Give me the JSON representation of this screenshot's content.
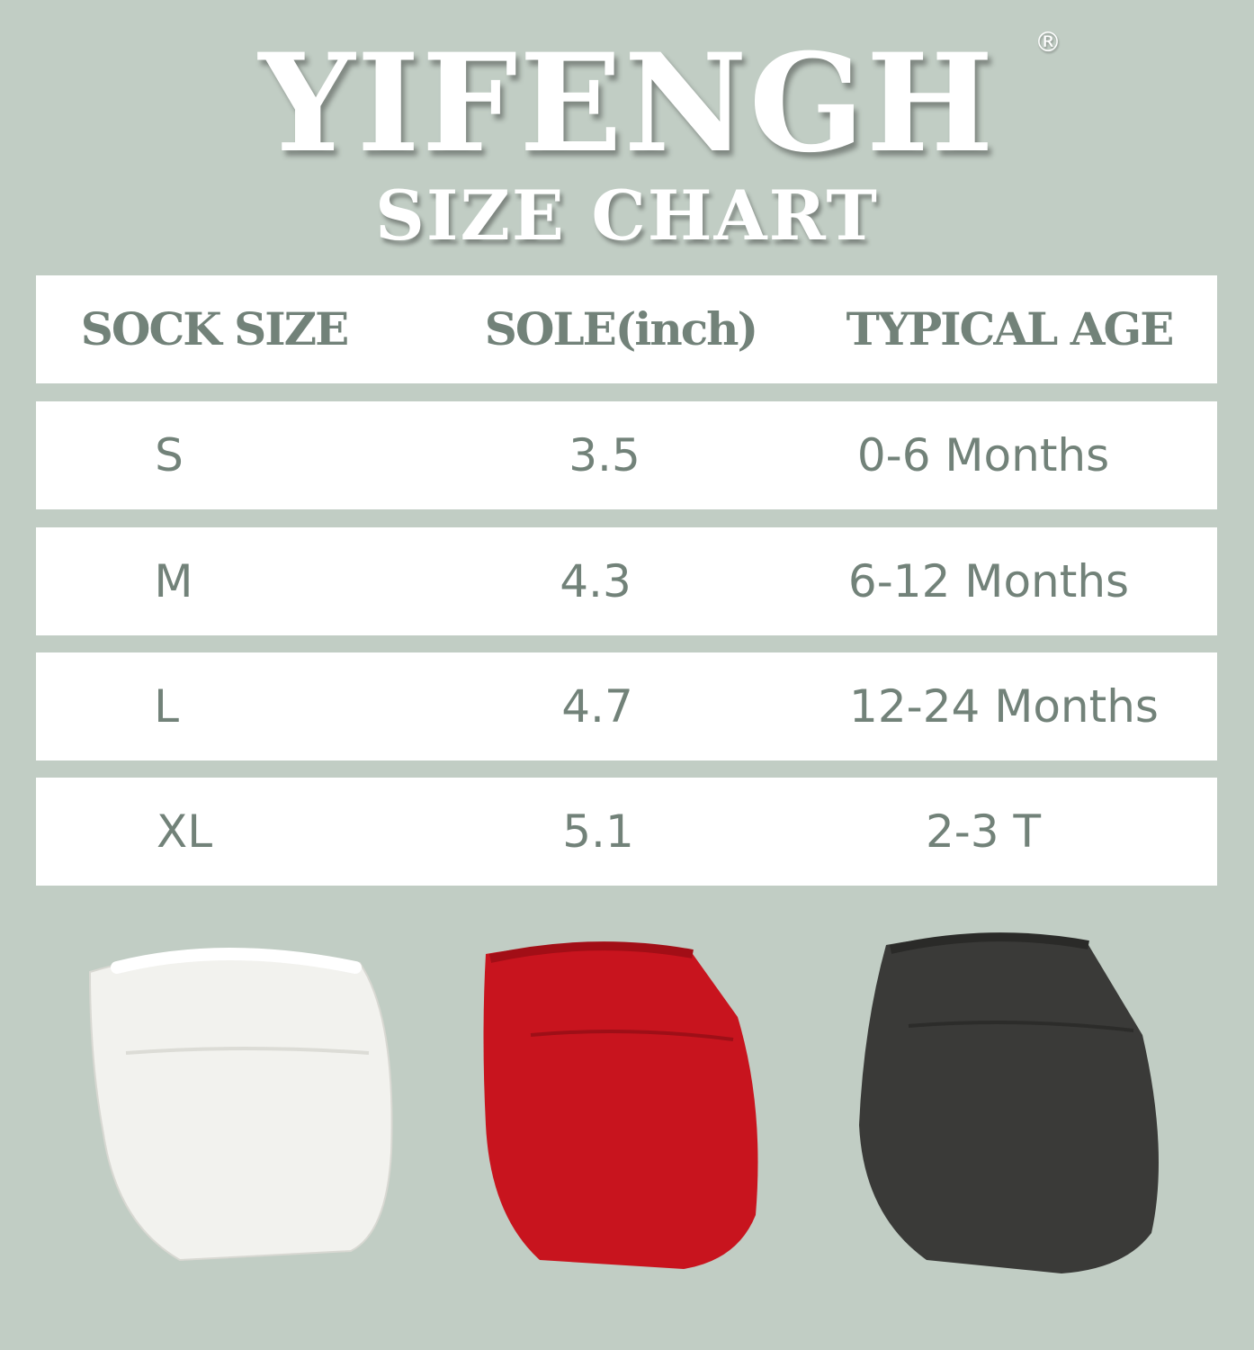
{
  "brand": {
    "name": "YIFENGH",
    "registered_mark": "®"
  },
  "subtitle": "SIZE CHART",
  "table": {
    "headers": [
      "SOCK SIZE",
      "SOLE(inch)",
      "TYPICAL AGE"
    ],
    "rows": [
      [
        "S",
        "3.5",
        "0-6 Months"
      ],
      [
        "M",
        "4.3",
        "6-12 Months"
      ],
      [
        "L",
        "4.7",
        "12-24 Months"
      ],
      [
        "XL",
        "5.1",
        "2-3 T"
      ]
    ]
  },
  "colors": {
    "background": "#c1cdc4",
    "text": "#728279",
    "sock_colors": [
      "#f2f2ee",
      "#c8141e",
      "#3a3a38"
    ]
  }
}
